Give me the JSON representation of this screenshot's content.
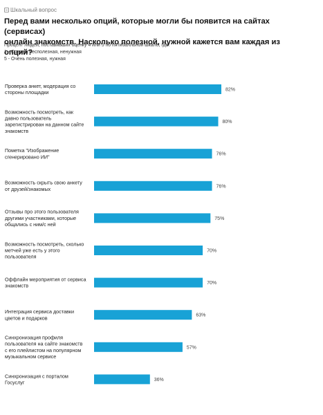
{
  "question_type": {
    "icon": "question-type-icon",
    "label": "Шкальный вопрос"
  },
  "header": {
    "title_lines": [
      "Перед вами несколько опций, которые могли бы появится на сайтах (сервисах)",
      "онлайн знакомств. Насколько полезной, нужной кажется вам каждая из опций?"
    ],
    "subtitle_lines": [
      "Процент людей, поставивших оценку 4 или 5 по пятибалльной шкале, где:",
      "1 - Совсем бесполезная, ненужная",
      "5 - Очень полезная, нужная"
    ]
  },
  "chart_data": {
    "type": "bar",
    "orientation": "horizontal",
    "bar_color": "#18a2d6",
    "xlim": [
      0,
      100
    ],
    "grid": false,
    "legend": "none",
    "categories": [
      "Проверка анкет, модерация со стороны площадки",
      "Возможность посмотреть, как давно пользователь зарегистрирован на данном сайте знакомств",
      "Пометка \"Изображение сгенерировано ИИ\"",
      "Возможность скрыть свою анкету от друзей/знакомых",
      "Отзывы про этого пользователя другими участниками, которые общались с ним/с ней",
      "Возможность посмотреть, сколько метчей уже есть у этого пользователя",
      "Оффлайн мероприятия от сервиса знакомств",
      "Интеграция сервиса доставки цветов и подарков",
      "Синхронизация профиля пользователя на сайте знакомств с его плейлистом на популярном музыкальном сервисе",
      "Синхронизация с порталом Госуслуг"
    ],
    "category_lines": [
      [
        "Проверка анкет, модерация со",
        "стороны площадки"
      ],
      [
        "Возможность посмотреть, как",
        "давно пользователь",
        "зарегистрирован на данном сайте",
        "знакомств"
      ],
      [
        "Пометка \"Изображение",
        "сгенерировано ИИ\""
      ],
      [
        "Возможность скрыть свою анкету",
        "от друзей/знакомых"
      ],
      [
        "Отзывы про этого пользователя",
        "другими участниками, которые",
        "общались с ним/с ней"
      ],
      [
        "Возможность посмотреть, сколько",
        "метчей уже есть у этого",
        "пользователя"
      ],
      [
        "Оффлайн мероприятия от сервиса",
        "знакомств"
      ],
      [
        "Интеграция сервиса доставки",
        "цветов и подарков"
      ],
      [
        "Синхронизация профиля",
        "пользователя на сайте знакомств",
        "с его плейлистом на популярном",
        "музыкальном сервисе"
      ],
      [
        "Синхронизация с порталом",
        "Госуслуг"
      ]
    ],
    "values": [
      82,
      80,
      76,
      76,
      75,
      70,
      70,
      63,
      57,
      36
    ],
    "value_labels": [
      "82%",
      "80%",
      "76%",
      "76%",
      "75%",
      "70%",
      "70%",
      "63%",
      "57%",
      "36%"
    ]
  }
}
